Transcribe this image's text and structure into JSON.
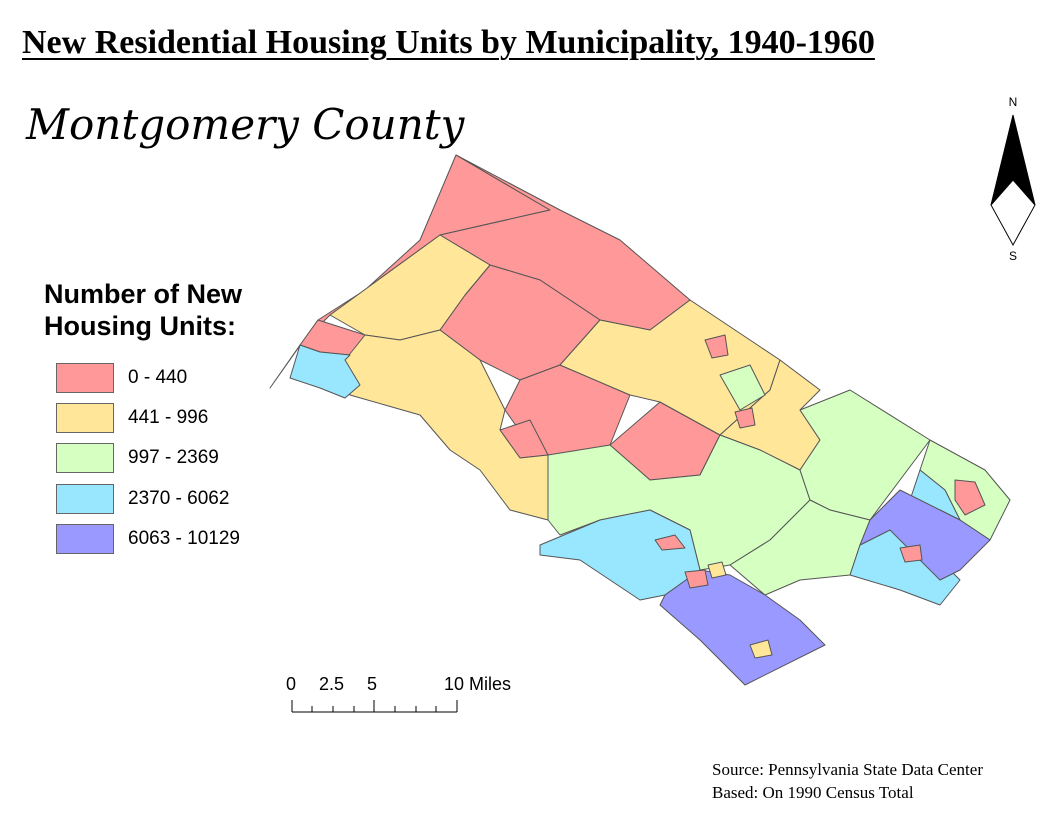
{
  "title": "New Residential Housing Units by Municipality, 1940-1960",
  "region_name": "Montgomery County",
  "legend": {
    "title_line1": "Number of New",
    "title_line2": "Housing Units:",
    "classes": [
      {
        "label": "0 - 440",
        "color": "#FF9999"
      },
      {
        "label": "441 - 996",
        "color": "#FFE699"
      },
      {
        "label": "997 - 2369",
        "color": "#D6FFC2"
      },
      {
        "label": "2370 - 6062",
        "color": "#99E6FF"
      },
      {
        "label": "6063 - 10129",
        "color": "#9999FF"
      }
    ]
  },
  "north_arrow": {
    "north_label": "N",
    "south_label": "S"
  },
  "scale_bar": {
    "labels": [
      "0",
      "2.5",
      "5",
      "10 Miles"
    ]
  },
  "source": {
    "line1": "Source: Pennsylvania State Data Center",
    "line2": "Based: On 1990 Census Total"
  }
}
